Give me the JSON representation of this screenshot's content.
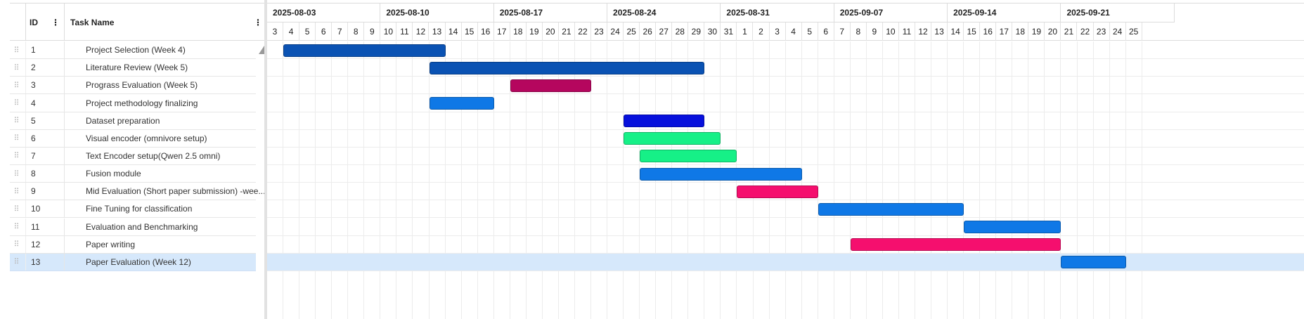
{
  "grid": {
    "columns": {
      "id": "ID",
      "task_name": "Task Name"
    },
    "menu_glyph": "⋮",
    "drag_glyph": "⠿"
  },
  "timeline": {
    "weeks": [
      "2025-08-03",
      "2025-08-10",
      "2025-08-17",
      "2025-08-24",
      "2025-08-31",
      "2025-09-07",
      "2025-09-14",
      "2025-09-21"
    ],
    "days": [
      3,
      4,
      5,
      6,
      7,
      8,
      9,
      10,
      11,
      12,
      13,
      14,
      15,
      16,
      17,
      18,
      19,
      20,
      21,
      22,
      23,
      24,
      25,
      26,
      27,
      28,
      29,
      30,
      31,
      1,
      2,
      3,
      4,
      5,
      6,
      7,
      8,
      9,
      10,
      11,
      12,
      13,
      14,
      15,
      16,
      17,
      18,
      19,
      20,
      21,
      22,
      23,
      24,
      25
    ]
  },
  "tasks": [
    {
      "id": "1",
      "name": "Project Selection (Week 4)",
      "start": "2025-08-04",
      "end": "2025-08-13",
      "color": "#0a52b3"
    },
    {
      "id": "2",
      "name": "Literature Review (Week 5)",
      "start": "2025-08-13",
      "end": "2025-08-29",
      "color": "#0a52b3"
    },
    {
      "id": "3",
      "name": "Prograss Evaluation (Week 5)",
      "start": "2025-08-18",
      "end": "2025-08-22",
      "color": "#b5065e"
    },
    {
      "id": "4",
      "name": "Project methodology finalizing",
      "start": "2025-08-13",
      "end": "2025-08-16",
      "color": "#0f78e6"
    },
    {
      "id": "5",
      "name": "Dataset preparation",
      "start": "2025-08-25",
      "end": "2025-08-29",
      "color": "#0710dc"
    },
    {
      "id": "6",
      "name": "Visual encoder (omnivore setup)",
      "start": "2025-08-25",
      "end": "2025-08-30",
      "color": "#16f087"
    },
    {
      "id": "7",
      "name": "Text Encoder setup(Qwen 2.5 omni)",
      "start": "2025-08-26",
      "end": "2025-08-31",
      "color": "#16f087"
    },
    {
      "id": "8",
      "name": "Fusion module",
      "start": "2025-08-26",
      "end": "2025-09-04",
      "color": "#0f78e6"
    },
    {
      "id": "9",
      "name": "Mid Evaluation (Short paper submission) -wee...",
      "start": "2025-09-01",
      "end": "2025-09-05",
      "color": "#f50f6e"
    },
    {
      "id": "10",
      "name": "Fine Tuning for classification",
      "start": "2025-09-06",
      "end": "2025-09-14",
      "color": "#0f78e6"
    },
    {
      "id": "11",
      "name": "Evaluation and Benchmarking",
      "start": "2025-09-15",
      "end": "2025-09-20",
      "color": "#0f78e6"
    },
    {
      "id": "12",
      "name": "Paper writing",
      "start": "2025-09-08",
      "end": "2025-09-20",
      "color": "#f50f6e"
    },
    {
      "id": "13",
      "name": "Paper Evaluation (Week 12)",
      "start": "2025-09-21",
      "end": "2025-09-24",
      "color": "#0f78e6",
      "selected": true
    }
  ]
}
